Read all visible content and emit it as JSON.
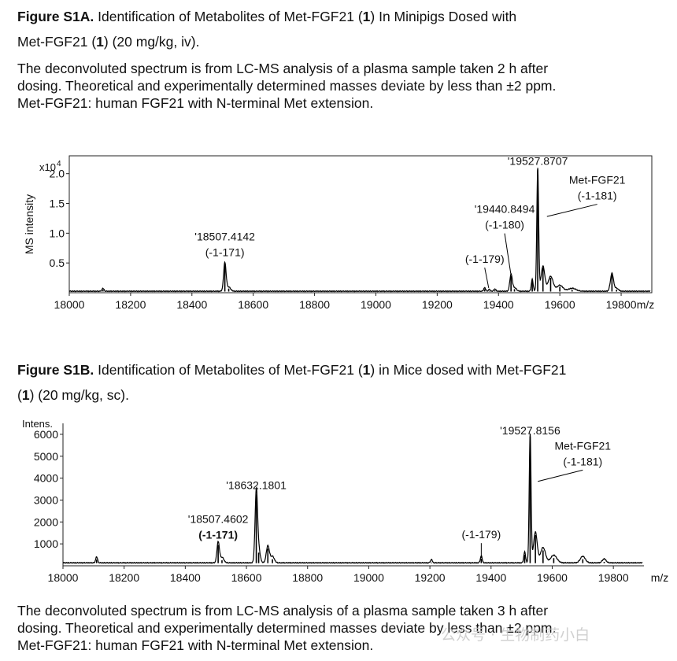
{
  "fig_a": {
    "caption_bold": "Figure S1A.",
    "caption_line1": " Identification of Metabolites of Met-FGF21 (",
    "caption_num1": "1",
    "caption_line1_end": ") In Minipigs Dosed with",
    "caption_line2_start": "Met-FGF21 (",
    "caption_num2": "1",
    "caption_line2_end": ") (20 mg/kg, iv).",
    "desc": [
      "The deconvoluted spectrum is from LC-MS analysis of a plasma sample taken 2 h after",
      "dosing. Theoretical and experimentally determined masses deviate by less than ±2 ppm.",
      "Met-FGF21: human FGF21 with N-terminal Met extension."
    ]
  },
  "fig_b": {
    "caption_bold": "Figure S1B.",
    "caption_line1": " Identification of Metabolites of Met-FGF21 (",
    "caption_num1": "1",
    "caption_line1_end": ") in Mice dosed with Met-FGF21",
    "caption_line2_start": "(",
    "caption_num2": "1",
    "caption_line2_end": ") (20 mg/kg, sc).",
    "desc": [
      "The deconvoluted spectrum is from LC-MS analysis of a plasma sample taken 3 h after",
      "dosing. Theoretical and experimentally determined masses deviate by less than ±2 ppm.",
      "Met-FGF21: human FGF21 with N-terminal Met extension."
    ]
  },
  "watermark": "公众号 · 生物制药小白",
  "colors": {
    "text": "#111111",
    "spectrum": "#000000",
    "axis": "#222222"
  },
  "chart_data": [
    {
      "type": "line",
      "title": "Figure S1A",
      "xlabel": "m/z",
      "ylabel": "MS intensity",
      "y_multiplier_label": "x10",
      "y_multiplier_exp": "4",
      "xlim": [
        18000,
        19900
      ],
      "ylim": [
        0,
        2.3
      ],
      "xticks": [
        18000,
        18200,
        18400,
        18600,
        18800,
        19000,
        19200,
        19400,
        19600,
        19800
      ],
      "yticks": [
        0.5,
        1.0,
        1.5,
        2.0
      ],
      "ytick_labels": [
        "0.5",
        "1.0",
        "1.5",
        "2.0"
      ],
      "baseline": 0.02,
      "peaks": [
        {
          "x": 18110,
          "y": 0.05,
          "w": 3
        },
        {
          "x": 18507.4,
          "y": 0.48,
          "w": 4
        },
        {
          "x": 18520,
          "y": 0.07,
          "w": 6
        },
        {
          "x": 19355,
          "y": 0.06,
          "w": 3
        },
        {
          "x": 19370,
          "y": 0.03,
          "w": 3
        },
        {
          "x": 19388,
          "y": 0.04,
          "w": 3
        },
        {
          "x": 19440.8,
          "y": 0.28,
          "w": 4
        },
        {
          "x": 19452,
          "y": 0.06,
          "w": 6
        },
        {
          "x": 19510,
          "y": 0.2,
          "w": 3
        },
        {
          "x": 19527.9,
          "y": 2.07,
          "w": 3
        },
        {
          "x": 19545,
          "y": 0.42,
          "w": 6
        },
        {
          "x": 19570,
          "y": 0.25,
          "w": 8
        },
        {
          "x": 19600,
          "y": 0.1,
          "w": 10
        },
        {
          "x": 19640,
          "y": 0.05,
          "w": 12
        },
        {
          "x": 19770,
          "y": 0.3,
          "w": 5
        },
        {
          "x": 19785,
          "y": 0.05,
          "w": 6
        }
      ],
      "annotations": [
        {
          "lines": [
            "'18507.4142",
            "(-1-171)"
          ],
          "x": 18507.4,
          "y": 0.88,
          "bold": false
        },
        {
          "lines": [
            "'19440.8494",
            "(-1-180)"
          ],
          "x": 19420,
          "y": 1.34,
          "bold": false,
          "leader_to": [
            19440,
            0.32
          ]
        },
        {
          "lines": [
            "(-1-179)"
          ],
          "x": 19355,
          "y": 0.5,
          "bold": false,
          "leader_to": [
            19368,
            0.08
          ]
        },
        {
          "lines": [
            "'19527.8707"
          ],
          "x": 19527.9,
          "y": 2.15,
          "bold": false
        },
        {
          "lines": [
            "Met-FGF21",
            "(-1-181)"
          ],
          "x": 19722,
          "y": 1.83,
          "bold": false,
          "leader_to": [
            19558,
            1.28
          ]
        }
      ]
    },
    {
      "type": "line",
      "title": "Figure S1B",
      "xlabel": "m/z",
      "ylabel": "Intens.",
      "xlim": [
        18000,
        19900
      ],
      "ylim": [
        0,
        6500
      ],
      "xticks": [
        18000,
        18200,
        18400,
        18600,
        18800,
        19000,
        19200,
        19400,
        19600,
        19800
      ],
      "yticks": [
        1000,
        2000,
        3000,
        4000,
        5000,
        6000
      ],
      "ytick_labels": [
        "1000",
        "2000",
        "3000",
        "4000",
        "5000",
        "6000"
      ],
      "baseline": 120,
      "peaks": [
        {
          "x": 18110,
          "y": 280,
          "w": 3
        },
        {
          "x": 18507.5,
          "y": 950,
          "w": 4
        },
        {
          "x": 18520,
          "y": 250,
          "w": 6
        },
        {
          "x": 18632.2,
          "y": 3250,
          "w": 4
        },
        {
          "x": 18640,
          "y": 600,
          "w": 5
        },
        {
          "x": 18670,
          "y": 780,
          "w": 5
        },
        {
          "x": 18685,
          "y": 300,
          "w": 6
        },
        {
          "x": 19205,
          "y": 150,
          "w": 3
        },
        {
          "x": 19368,
          "y": 320,
          "w": 3
        },
        {
          "x": 19510,
          "y": 500,
          "w": 3
        },
        {
          "x": 19527.8,
          "y": 5900,
          "w": 3
        },
        {
          "x": 19545,
          "y": 1400,
          "w": 6
        },
        {
          "x": 19570,
          "y": 700,
          "w": 8
        },
        {
          "x": 19605,
          "y": 350,
          "w": 10
        },
        {
          "x": 19700,
          "y": 300,
          "w": 8
        },
        {
          "x": 19770,
          "y": 180,
          "w": 6
        }
      ],
      "annotations": [
        {
          "lines": [
            "'18507.4602",
            "(-1-171)"
          ],
          "x": 18507.5,
          "y": 1950,
          "bold": true
        },
        {
          "lines": [
            "'18632.1801"
          ],
          "x": 18632.2,
          "y": 3500,
          "bold": false
        },
        {
          "lines": [
            "(-1-179)"
          ],
          "x": 19368,
          "y": 1250,
          "bold": false,
          "leader_to": [
            19368,
            350
          ]
        },
        {
          "lines": [
            "'19527.8156"
          ],
          "x": 19527.8,
          "y": 6000,
          "bold": false
        },
        {
          "lines": [
            "Met-FGF21",
            "(-1-181)"
          ],
          "x": 19700,
          "y": 5300,
          "bold": false,
          "leader_to": [
            19553,
            3850
          ]
        }
      ]
    }
  ]
}
